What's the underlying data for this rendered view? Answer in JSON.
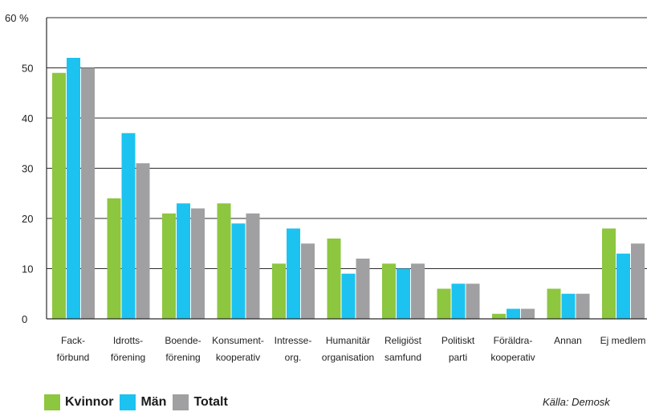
{
  "chart_data": {
    "type": "bar",
    "y_unit_label": "60 %",
    "yticks": [
      "0",
      "10",
      "20",
      "30",
      "40",
      "50"
    ],
    "ylim": [
      0,
      60
    ],
    "grid": true,
    "categories": [
      [
        "Fack-",
        "förbund"
      ],
      [
        "Idrotts-",
        "förening"
      ],
      [
        "Boende-",
        "förening"
      ],
      [
        "Konsument-",
        "kooperativ"
      ],
      [
        "Intresse-",
        "org."
      ],
      [
        "Humanitär",
        "organisation"
      ],
      [
        "Religiöst",
        "samfund"
      ],
      [
        "Politiskt",
        "parti"
      ],
      [
        "Föräldra-",
        "kooperativ"
      ],
      [
        "Annan"
      ],
      [
        "Ej medlem"
      ]
    ],
    "series": [
      {
        "name": "Kvinnor",
        "color": "#8dc63f",
        "values": [
          49,
          24,
          21,
          23,
          11,
          16,
          11,
          6,
          1,
          6,
          18
        ]
      },
      {
        "name": "Män",
        "color": "#1cc3f0",
        "values": [
          52,
          37,
          23,
          19,
          18,
          9,
          10,
          7,
          2,
          5,
          13
        ]
      },
      {
        "name": "Totalt",
        "color": "#a0a0a2",
        "values": [
          50,
          31,
          22,
          21,
          15,
          12,
          11,
          7,
          2,
          5,
          15
        ]
      }
    ],
    "legend_placement": "bottom-left",
    "source": "Källa: Demosk"
  }
}
